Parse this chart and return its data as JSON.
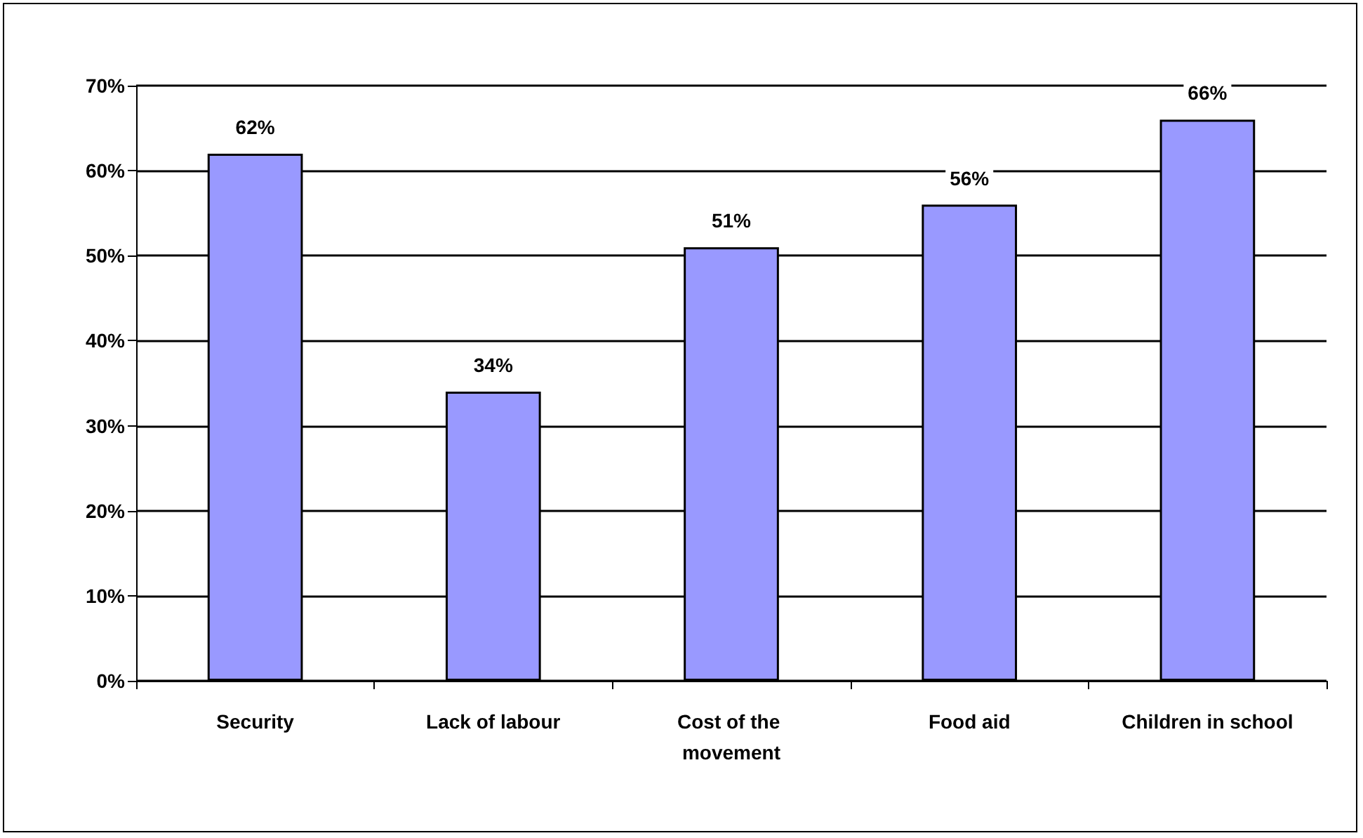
{
  "chart_data": {
    "type": "bar",
    "categories": [
      "Security",
      "Lack of labour",
      "Cost of the movement",
      "Food aid",
      "Children in school"
    ],
    "values": [
      62,
      34,
      51,
      56,
      66
    ],
    "color": "#9999ff",
    "value_labels": [
      "62%",
      "34%",
      "51%",
      "56%",
      "66%"
    ],
    "ylim": [
      0,
      70
    ],
    "yticks": [
      {
        "value": 0,
        "label": "0%"
      },
      {
        "value": 10,
        "label": "10%"
      },
      {
        "value": 20,
        "label": "20%"
      },
      {
        "value": 30,
        "label": "30%"
      },
      {
        "value": 40,
        "label": "40%"
      },
      {
        "value": 50,
        "label": "50%"
      },
      {
        "value": 60,
        "label": "60%"
      },
      {
        "value": 70,
        "label": "70%"
      }
    ],
    "grid": "y"
  }
}
